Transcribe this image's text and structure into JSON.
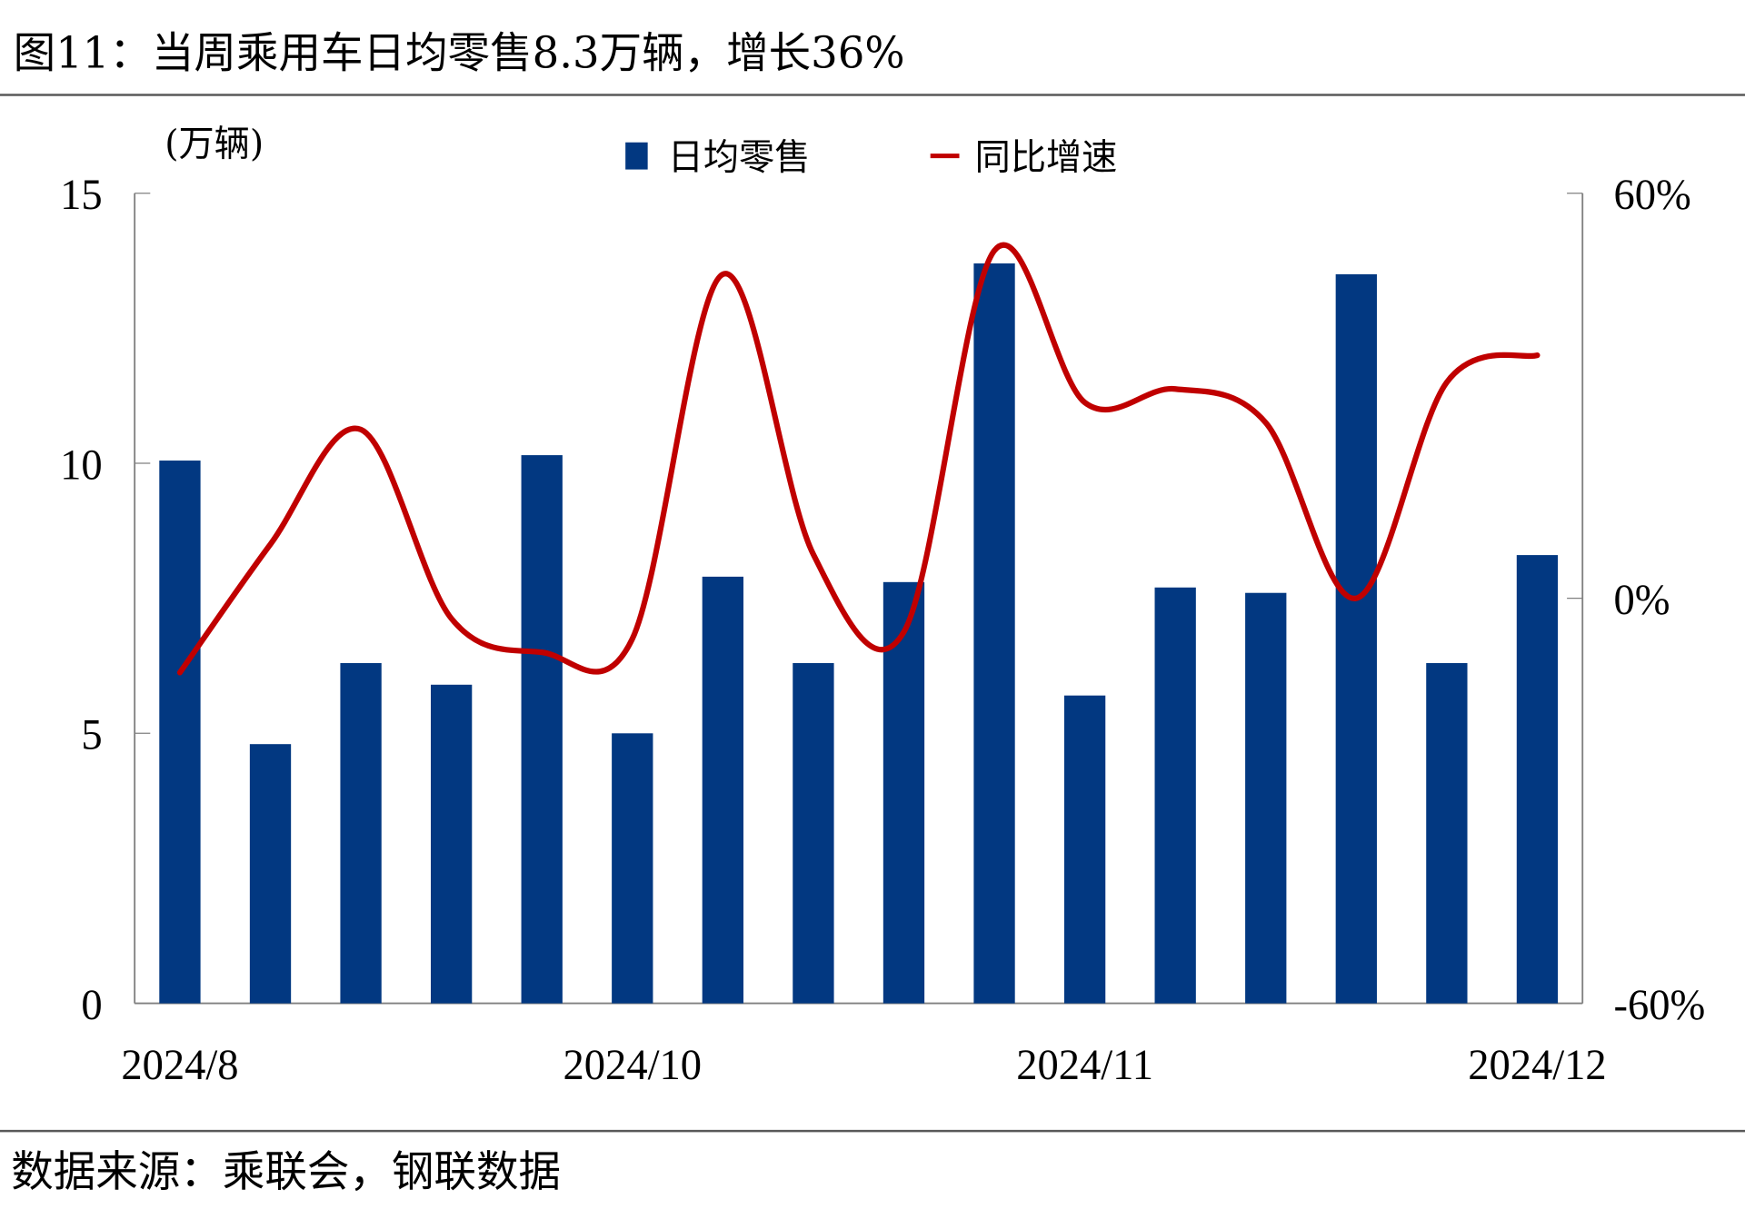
{
  "title": "图11：当周乘用车日均零售8.3万辆，增长36%",
  "source": "数据来源：乘联会，钢联数据",
  "colors": {
    "bar": "#023881",
    "line": "#C00000",
    "rule": "#595959"
  },
  "chart_data": {
    "type": "bar+line",
    "title": "当周乘用车日均零售8.3万辆，增长36%",
    "unit_label": "(万辆)",
    "categories": [
      "2024/8",
      "",
      "",
      "",
      "",
      "2024/10",
      "",
      "",
      "",
      "",
      "2024/11",
      "",
      "",
      "",
      "",
      "2024/12"
    ],
    "x_tick_labels": [
      "2024/8",
      "2024/10",
      "2024/11",
      "2024/12"
    ],
    "x_tick_index": [
      0,
      5,
      10,
      15
    ],
    "left_axis": {
      "min": 0,
      "max": 15,
      "ticks": [
        "0",
        "5",
        "10",
        "15"
      ],
      "tick_values": [
        0,
        5,
        10,
        15
      ]
    },
    "right_axis": {
      "min": -60,
      "max": 60,
      "ticks": [
        "-60%",
        "0%",
        "60%"
      ],
      "tick_values": [
        -60,
        0,
        60
      ]
    },
    "legend_placement": "top-center",
    "series": [
      {
        "name": "日均零售",
        "type": "bar",
        "axis": "left",
        "values": [
          10.05,
          4.8,
          6.3,
          5.9,
          10.15,
          5.0,
          7.9,
          6.3,
          7.8,
          13.7,
          5.7,
          7.7,
          7.6,
          13.5,
          6.3,
          8.3
        ]
      },
      {
        "name": "同比增速",
        "type": "line",
        "axis": "right",
        "values": [
          -11,
          8,
          25,
          -3,
          -8,
          -6,
          48,
          6.5,
          -5,
          51.5,
          29,
          31,
          26,
          0,
          32,
          36
        ]
      }
    ]
  }
}
